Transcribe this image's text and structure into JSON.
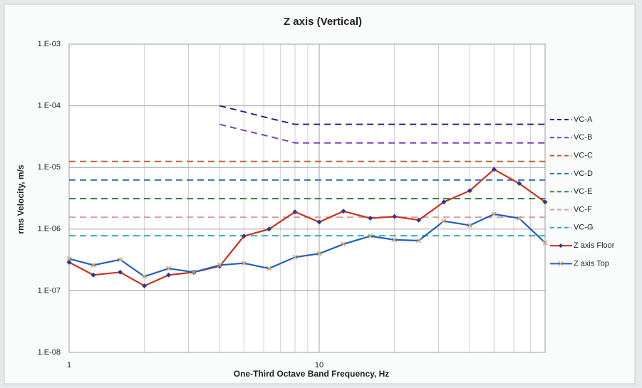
{
  "chart_data": {
    "type": "line",
    "title": "Z axis (Vertical)",
    "x_label": "One-Third Octave Band Frequency, Hz",
    "y_label": "rms Velocity, m/s",
    "xscale": "log",
    "yscale": "log",
    "grid": true,
    "minor_grid": true,
    "legend": "right",
    "xlim": [
      1,
      80
    ],
    "ylim": [
      1e-08,
      0.001
    ],
    "xticks": [
      1,
      10
    ],
    "yticks": [
      {
        "value": 1e-08,
        "label": "1.E-08"
      },
      {
        "value": 1e-07,
        "label": "1.E-07"
      },
      {
        "value": 1e-06,
        "label": "1.E-06"
      },
      {
        "value": 1e-05,
        "label": "1.E-05"
      },
      {
        "value": 0.0001,
        "label": "1.E-04"
      },
      {
        "value": 0.001,
        "label": "1.E-03"
      }
    ],
    "x": [
      1,
      1.25,
      1.6,
      2,
      2.5,
      3.15,
      4,
      5,
      6.3,
      8,
      10,
      12.5,
      16,
      20,
      25,
      31.5,
      40,
      50,
      63,
      80
    ],
    "series": [
      {
        "name": "VC-A",
        "color": "#1f2a80",
        "dash": true,
        "values": [
          null,
          null,
          null,
          null,
          null,
          null,
          0.0001,
          8e-05,
          6.3e-05,
          5e-05,
          5e-05,
          5e-05,
          5e-05,
          5e-05,
          5e-05,
          5e-05,
          5e-05,
          5e-05,
          5e-05,
          5e-05
        ]
      },
      {
        "name": "VC-B",
        "color": "#7a44b8",
        "dash": true,
        "values": [
          null,
          null,
          null,
          null,
          null,
          null,
          5e-05,
          4e-05,
          3.2e-05,
          2.5e-05,
          2.5e-05,
          2.5e-05,
          2.5e-05,
          2.5e-05,
          2.5e-05,
          2.5e-05,
          2.5e-05,
          2.5e-05,
          2.5e-05,
          2.5e-05
        ]
      },
      {
        "name": "VC-C",
        "color": "#c0622a",
        "dash": true,
        "values": [
          1.25e-05,
          1.25e-05,
          1.25e-05,
          1.25e-05,
          1.25e-05,
          1.25e-05,
          1.25e-05,
          1.25e-05,
          1.25e-05,
          1.25e-05,
          1.25e-05,
          1.25e-05,
          1.25e-05,
          1.25e-05,
          1.25e-05,
          1.25e-05,
          1.25e-05,
          1.25e-05,
          1.25e-05,
          1.25e-05
        ]
      },
      {
        "name": "VC-D",
        "color": "#2e75b6",
        "dash": true,
        "values": [
          6.25e-06,
          6.25e-06,
          6.25e-06,
          6.25e-06,
          6.25e-06,
          6.25e-06,
          6.25e-06,
          6.25e-06,
          6.25e-06,
          6.25e-06,
          6.25e-06,
          6.25e-06,
          6.25e-06,
          6.25e-06,
          6.25e-06,
          6.25e-06,
          6.25e-06,
          6.25e-06,
          6.25e-06,
          6.25e-06
        ]
      },
      {
        "name": "VC-E",
        "color": "#2e8b3a",
        "dash": true,
        "values": [
          3.12e-06,
          3.12e-06,
          3.12e-06,
          3.12e-06,
          3.12e-06,
          3.12e-06,
          3.12e-06,
          3.12e-06,
          3.12e-06,
          3.12e-06,
          3.12e-06,
          3.12e-06,
          3.12e-06,
          3.12e-06,
          3.12e-06,
          3.12e-06,
          3.12e-06,
          3.12e-06,
          3.12e-06,
          3.12e-06
        ]
      },
      {
        "name": "VC-F",
        "color": "#e29a9a",
        "dash": true,
        "values": [
          1.56e-06,
          1.56e-06,
          1.56e-06,
          1.56e-06,
          1.56e-06,
          1.56e-06,
          1.56e-06,
          1.56e-06,
          1.56e-06,
          1.56e-06,
          1.56e-06,
          1.56e-06,
          1.56e-06,
          1.56e-06,
          1.56e-06,
          1.56e-06,
          1.56e-06,
          1.56e-06,
          1.56e-06,
          1.56e-06
        ]
      },
      {
        "name": "VC-G",
        "color": "#2fb0b0",
        "dash": true,
        "values": [
          7.8e-07,
          7.8e-07,
          7.8e-07,
          7.8e-07,
          7.8e-07,
          7.8e-07,
          7.8e-07,
          7.8e-07,
          7.8e-07,
          7.8e-07,
          7.8e-07,
          7.8e-07,
          7.8e-07,
          7.8e-07,
          7.8e-07,
          7.8e-07,
          7.8e-07,
          7.8e-07,
          7.8e-07,
          7.8e-07
        ]
      },
      {
        "name": "Z axis Floor",
        "color": "#c8321e",
        "marker": "diamond",
        "values": [
          2.9e-07,
          1.8e-07,
          2e-07,
          1.2e-07,
          1.8e-07,
          2e-07,
          2.5e-07,
          7.7e-07,
          1e-06,
          1.9e-06,
          1.3e-06,
          1.95e-06,
          1.5e-06,
          1.6e-06,
          1.4e-06,
          2.75e-06,
          4.2e-06,
          9.3e-06,
          5.5e-06,
          2.75e-06
        ]
      },
      {
        "name": "Z axis Top",
        "color": "#1f5fbf",
        "marker": "x",
        "values": [
          3.3e-07,
          2.6e-07,
          3.2e-07,
          1.7e-07,
          2.3e-07,
          2e-07,
          2.6e-07,
          2.8e-07,
          2.3e-07,
          3.5e-07,
          4e-07,
          5.7e-07,
          7.7e-07,
          6.7e-07,
          6.5e-07,
          1.35e-06,
          1.15e-06,
          1.75e-06,
          1.5e-06,
          6e-07
        ]
      }
    ]
  }
}
